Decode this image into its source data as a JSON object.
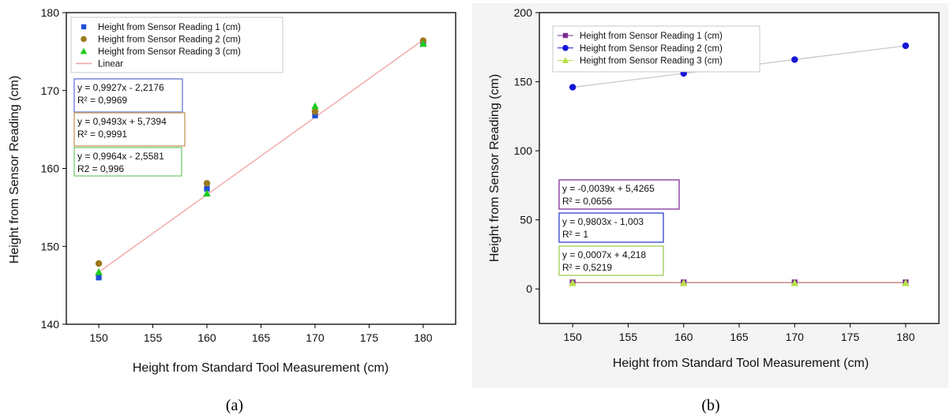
{
  "chart_data": [
    {
      "type": "scatter",
      "panel_label": "(a)",
      "xlabel": "Height from Standard Tool Measurement (cm)",
      "ylabel": "Height from Sensor Reading (cm)",
      "xlim": [
        147,
        183
      ],
      "ylim": [
        140,
        180
      ],
      "xticks": [
        150,
        155,
        160,
        165,
        170,
        175,
        180
      ],
      "yticks": [
        140,
        150,
        160,
        170,
        180
      ],
      "grid": false,
      "legend_position": "top-left",
      "series": [
        {
          "name": "Height from Sensor Reading 1 (cm)",
          "marker": "square",
          "color": "#1f4fd6",
          "x": [
            150,
            160,
            170,
            180
          ],
          "y": [
            146.0,
            157.4,
            166.8,
            176.2
          ]
        },
        {
          "name": "Height from Sensor Reading 2 (cm)",
          "marker": "circle",
          "color": "#9a7a1c",
          "x": [
            150,
            160,
            170,
            180
          ],
          "y": [
            147.8,
            158.1,
            167.3,
            176.4
          ]
        },
        {
          "name": "Height from Sensor Reading 3 (cm)",
          "marker": "triangle",
          "color": "#1fcc1f",
          "x": [
            150,
            160,
            170,
            180
          ],
          "y": [
            146.7,
            156.8,
            168.0,
            176.0
          ]
        }
      ],
      "fit_lines": [
        {
          "name": "Linear",
          "color": "#f0a0a0",
          "x": [
            150,
            180
          ],
          "y": [
            146.7,
            176.5
          ]
        }
      ],
      "annotations": [
        {
          "line1": "y = 0,9927x - 2,2176",
          "line2": "R² = 0,9969",
          "border": "#6f7fd8"
        },
        {
          "line1": "y = 0,9493x + 5,7394",
          "line2": "R² = 0,9991",
          "border": "#c8a060"
        },
        {
          "line1": "y = 0,9964x - 2,5581",
          "line2": "R2 = 0,996",
          "border": "#7fd07f"
        }
      ]
    },
    {
      "type": "scatter",
      "panel_label": "(b)",
      "xlabel": "Height from Standard Tool Measurement (cm)",
      "ylabel": "Height from Sensor Reading (cm)",
      "xlim": [
        147,
        183
      ],
      "ylim": [
        -25,
        200
      ],
      "xticks": [
        150,
        155,
        160,
        165,
        170,
        175,
        180
      ],
      "yticks": [
        0,
        50,
        100,
        150,
        200
      ],
      "grid": false,
      "legend_position": "top-left",
      "series": [
        {
          "name": "Height from Sensor Reading 1 (cm)",
          "marker": "square",
          "color": "#7a2d8c",
          "x": [
            150,
            160,
            170,
            180
          ],
          "y": [
            4.8,
            4.8,
            4.8,
            4.8
          ]
        },
        {
          "name": "Height from Sensor Reading 2 (cm)",
          "marker": "circle",
          "color": "#1515d8",
          "x": [
            150,
            160,
            170,
            180
          ],
          "y": [
            146,
            156,
            166,
            176
          ]
        },
        {
          "name": "Height from Sensor Reading 3 (cm)",
          "marker": "triangle",
          "color": "#b8e04a",
          "x": [
            150,
            160,
            170,
            180
          ],
          "y": [
            4.3,
            4.3,
            4.3,
            4.3
          ]
        }
      ],
      "fit_lines": [
        {
          "color": "#c8c8c8",
          "x": [
            150,
            180
          ],
          "y": [
            146,
            176
          ]
        },
        {
          "color": "#c08080",
          "x": [
            150,
            180
          ],
          "y": [
            4.6,
            4.6
          ]
        }
      ],
      "annotations": [
        {
          "line1": "y = -0,0039x + 5,4265",
          "line2": "R² = 0,0656",
          "border": "#8a3fa0"
        },
        {
          "line1": "y = 0,9803x - 1,003",
          "line2": "R² = 1",
          "border": "#3f4fd0"
        },
        {
          "line1": "y = 0,0007x + 4,218",
          "line2": "R² = 0,5219",
          "border": "#a8d060"
        }
      ]
    }
  ]
}
